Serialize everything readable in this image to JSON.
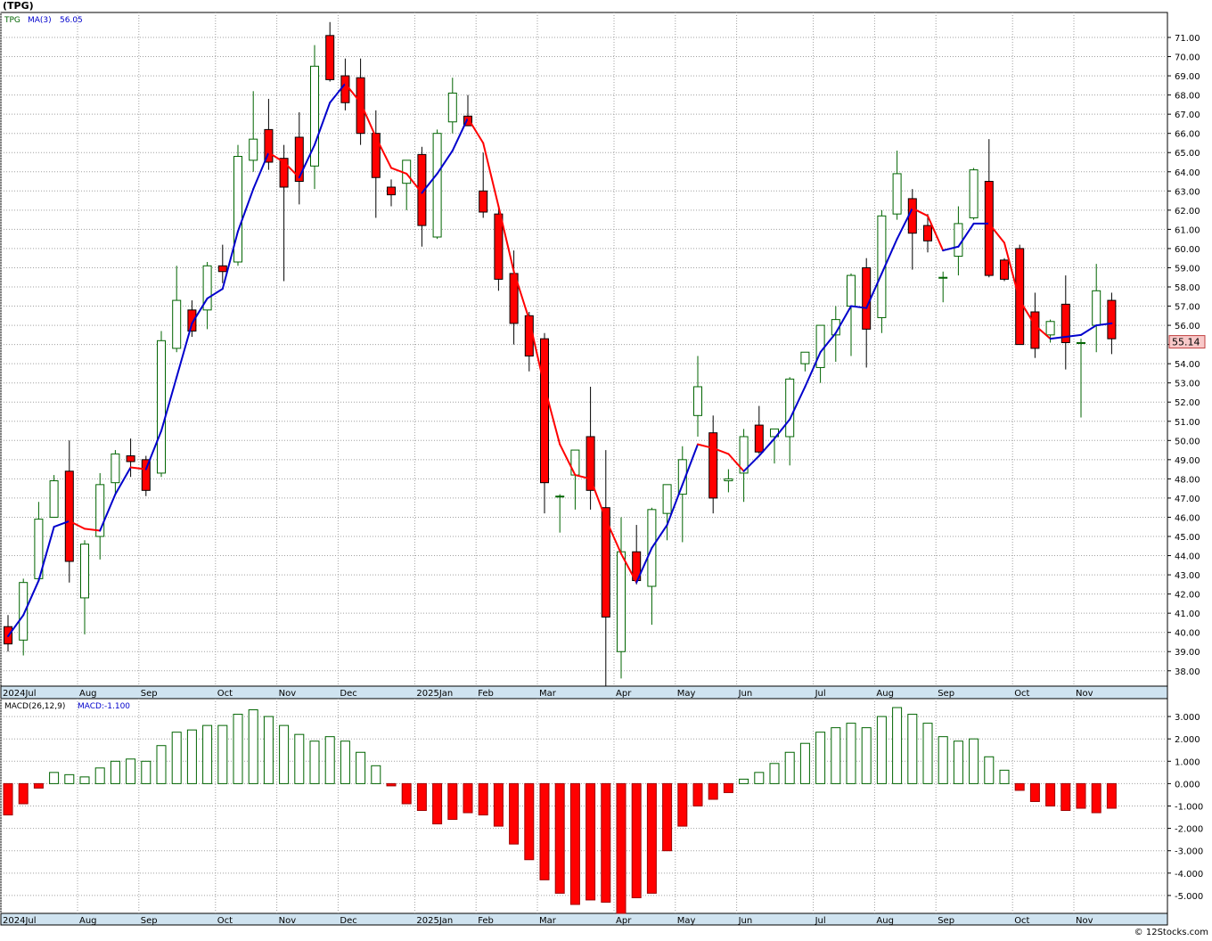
{
  "header": {
    "symbol_title": "(TPG)",
    "copyright": "© 12Stocks.com"
  },
  "colors": {
    "up_outline": "#006400",
    "down_fill": "#ff0000",
    "ma_up": "#0000cc",
    "ma_down": "#ff0000",
    "grid": "#a0a0a0",
    "axis_bg": "#cfe3f0",
    "last_bg": "#f8c8c8"
  },
  "chart_data": [
    {
      "type": "candlestick",
      "title": "",
      "legend": {
        "symbol": "TPG",
        "ma_label": "MA(3)",
        "ma_value": "56.05"
      },
      "last_price": "55.14",
      "ylim": [
        37.2,
        72.3
      ],
      "y_ticks": [
        "38.00",
        "39.00",
        "40.00",
        "41.00",
        "42.00",
        "43.00",
        "44.00",
        "45.00",
        "46.00",
        "47.00",
        "48.00",
        "49.00",
        "50.00",
        "51.00",
        "52.00",
        "53.00",
        "54.00",
        "55.00",
        "56.00",
        "57.00",
        "58.00",
        "59.00",
        "60.00",
        "61.00",
        "62.00",
        "63.00",
        "64.00",
        "65.00",
        "66.00",
        "67.00",
        "68.00",
        "69.00",
        "70.00",
        "71.00"
      ],
      "x_labels": [
        {
          "label": "2024Jul",
          "week": 0
        },
        {
          "label": "Aug",
          "week": 5
        },
        {
          "label": "Sep",
          "week": 9
        },
        {
          "label": "Oct",
          "week": 14
        },
        {
          "label": "Nov",
          "week": 18
        },
        {
          "label": "Dec",
          "week": 22
        },
        {
          "label": "2025Jan",
          "week": 27
        },
        {
          "label": "Feb",
          "week": 31
        },
        {
          "label": "Mar",
          "week": 35
        },
        {
          "label": "Apr",
          "week": 40
        },
        {
          "label": "May",
          "week": 44
        },
        {
          "label": "Jun",
          "week": 48
        },
        {
          "label": "Jul",
          "week": 53
        },
        {
          "label": "Aug",
          "week": 57
        },
        {
          "label": "Sep",
          "week": 61
        },
        {
          "label": "Oct",
          "week": 66
        },
        {
          "label": "Nov",
          "week": 70
        }
      ],
      "ohlc": [
        [
          40.3,
          40.9,
          39.0,
          39.4
        ],
        [
          39.6,
          42.8,
          38.8,
          42.6
        ],
        [
          42.8,
          46.8,
          42.7,
          45.9
        ],
        [
          46.0,
          48.2,
          46.0,
          47.9
        ],
        [
          48.4,
          50.0,
          42.6,
          43.7
        ],
        [
          41.8,
          44.8,
          39.9,
          44.6
        ],
        [
          45.0,
          48.3,
          43.8,
          47.7
        ],
        [
          47.8,
          49.5,
          47.2,
          49.3
        ],
        [
          49.2,
          50.1,
          48.1,
          48.9
        ],
        [
          49.0,
          49.2,
          47.1,
          47.4
        ],
        [
          48.3,
          55.7,
          48.1,
          55.2
        ],
        [
          54.8,
          59.1,
          54.6,
          57.3
        ],
        [
          56.8,
          57.3,
          55.4,
          55.7
        ],
        [
          56.8,
          59.3,
          55.8,
          59.1
        ],
        [
          59.1,
          60.2,
          58.2,
          58.8
        ],
        [
          59.3,
          65.4,
          59.1,
          64.8
        ],
        [
          64.6,
          68.2,
          64.0,
          65.7
        ],
        [
          66.2,
          67.8,
          64.1,
          64.5
        ],
        [
          64.7,
          65.4,
          58.3,
          63.2
        ],
        [
          65.8,
          67.1,
          62.3,
          63.5
        ],
        [
          64.3,
          70.6,
          63.1,
          69.5
        ],
        [
          71.1,
          71.8,
          68.7,
          68.8
        ],
        [
          69.0,
          69.9,
          67.2,
          67.6
        ],
        [
          68.9,
          69.9,
          65.4,
          66.0
        ],
        [
          66.0,
          67.2,
          61.6,
          63.7
        ],
        [
          63.2,
          63.6,
          62.2,
          62.8
        ],
        [
          63.4,
          64.6,
          62.0,
          64.6
        ],
        [
          64.9,
          65.3,
          60.1,
          61.2
        ],
        [
          60.6,
          66.2,
          60.5,
          66.0
        ],
        [
          66.6,
          68.9,
          66.0,
          68.1
        ],
        [
          66.9,
          68.0,
          66.6,
          66.4
        ],
        [
          63.0,
          65.0,
          61.6,
          61.9
        ],
        [
          61.8,
          62.1,
          57.8,
          58.4
        ],
        [
          58.7,
          59.9,
          55.0,
          56.1
        ],
        [
          56.5,
          56.7,
          53.6,
          54.4
        ],
        [
          55.3,
          55.6,
          46.2,
          47.8
        ],
        [
          47.1,
          47.2,
          45.2,
          47.1
        ],
        [
          48.2,
          49.5,
          46.4,
          49.5
        ],
        [
          50.2,
          52.8,
          46.4,
          47.4
        ],
        [
          46.5,
          49.5,
          37.2,
          40.8
        ],
        [
          39.0,
          46.0,
          37.6,
          44.2
        ],
        [
          44.2,
          45.6,
          42.5,
          42.7
        ],
        [
          42.4,
          46.5,
          40.4,
          46.4
        ],
        [
          46.2,
          47.6,
          44.8,
          47.7
        ],
        [
          47.2,
          49.7,
          44.7,
          49.0
        ],
        [
          51.3,
          54.4,
          50.2,
          52.8
        ],
        [
          50.4,
          51.3,
          46.2,
          47.0
        ],
        [
          47.9,
          48.5,
          47.3,
          48.0
        ],
        [
          48.3,
          50.6,
          46.8,
          50.2
        ],
        [
          50.8,
          51.8,
          49.3,
          49.4
        ],
        [
          50.2,
          50.6,
          48.8,
          50.6
        ],
        [
          50.2,
          53.3,
          48.7,
          53.2
        ],
        [
          54.0,
          54.6,
          53.6,
          54.6
        ],
        [
          53.8,
          56.0,
          53.0,
          56.0
        ],
        [
          55.5,
          57.0,
          54.1,
          56.3
        ],
        [
          57.0,
          58.7,
          54.4,
          58.6
        ],
        [
          59.0,
          59.5,
          53.8,
          55.8
        ],
        [
          56.4,
          62.0,
          55.6,
          61.7
        ],
        [
          61.8,
          65.1,
          61.5,
          63.9
        ],
        [
          62.6,
          63.1,
          58.9,
          60.8
        ],
        [
          61.2,
          61.8,
          59.8,
          60.4
        ],
        [
          58.5,
          58.8,
          57.2,
          58.5
        ],
        [
          59.6,
          62.2,
          58.6,
          61.3
        ],
        [
          61.6,
          64.2,
          61.5,
          64.1
        ],
        [
          63.5,
          65.7,
          58.5,
          58.6
        ],
        [
          59.4,
          59.5,
          58.3,
          58.4
        ],
        [
          60.0,
          60.2,
          55.1,
          55.0
        ],
        [
          56.7,
          57.7,
          54.3,
          54.8
        ],
        [
          55.5,
          56.3,
          55.1,
          56.2
        ],
        [
          57.1,
          58.6,
          53.7,
          55.1
        ],
        [
          55.1,
          55.3,
          51.2,
          55.1
        ],
        [
          56.0,
          59.2,
          54.6,
          57.8
        ],
        [
          57.3,
          57.7,
          54.5,
          55.3
        ]
      ],
      "ma3": [
        39.8,
        40.9,
        42.7,
        45.5,
        45.8,
        45.4,
        45.3,
        47.2,
        48.6,
        48.5,
        50.5,
        53.3,
        56.1,
        57.4,
        57.9,
        60.9,
        63.1,
        65.0,
        64.5,
        63.7,
        65.4,
        67.6,
        68.6,
        67.6,
        65.8,
        64.2,
        63.9,
        62.9,
        63.9,
        65.1,
        66.8,
        65.5,
        62.2,
        58.8,
        56.3,
        52.8,
        49.8,
        48.2,
        48.0,
        45.9,
        44.1,
        42.6,
        44.4,
        45.6,
        47.7,
        49.8,
        49.6,
        49.3,
        48.4,
        49.2,
        50.1,
        51.1,
        52.8,
        54.6,
        55.6,
        57.0,
        56.9,
        58.7,
        60.5,
        62.1,
        61.7,
        59.9,
        60.1,
        61.3,
        61.3,
        60.3,
        57.3,
        56.0,
        55.3,
        55.4,
        55.5,
        56.0,
        56.1
      ],
      "ma_segment_color": [
        "up",
        "up",
        "up",
        "up",
        "up",
        "down",
        "down",
        "up",
        "up",
        "down",
        "up",
        "up",
        "up",
        "up",
        "up",
        "up",
        "up",
        "up",
        "down",
        "down",
        "up",
        "up",
        "up",
        "down",
        "down",
        "down",
        "down",
        "down",
        "up",
        "up",
        "up",
        "down",
        "down",
        "down",
        "down",
        "down",
        "down",
        "down",
        "down",
        "down",
        "down",
        "down",
        "up",
        "up",
        "up",
        "up",
        "down",
        "down",
        "down",
        "up",
        "up",
        "up",
        "up",
        "up",
        "up",
        "up",
        "up",
        "up",
        "up",
        "up",
        "down",
        "down",
        "up",
        "up",
        "up",
        "down",
        "down",
        "down",
        "down",
        "up",
        "up",
        "up",
        "up"
      ]
    },
    {
      "type": "bar",
      "title": "",
      "legend": {
        "label": "MACD(26,12,9)",
        "value_label": "MACD:-1.100"
      },
      "ylim": [
        -5.8,
        3.8
      ],
      "y_ticks": [
        "3.000",
        "2.000",
        "1.000",
        "0.000",
        "-1.000",
        "-2.000",
        "-3.000",
        "-4.000",
        "-5.000"
      ],
      "values": [
        -1.4,
        -0.9,
        -0.2,
        0.5,
        0.4,
        0.3,
        0.7,
        1.0,
        1.1,
        1.0,
        1.7,
        2.3,
        2.4,
        2.6,
        2.6,
        3.1,
        3.3,
        3.0,
        2.6,
        2.2,
        1.9,
        2.1,
        1.9,
        1.4,
        0.8,
        -0.1,
        -0.9,
        -1.2,
        -1.8,
        -1.6,
        -1.3,
        -1.4,
        -1.9,
        -2.7,
        -3.4,
        -4.3,
        -4.9,
        -5.4,
        -5.2,
        -5.3,
        -5.8,
        -5.1,
        -4.9,
        -3.0,
        -1.9,
        -1.0,
        -0.7,
        -0.4,
        0.2,
        0.5,
        0.9,
        1.4,
        1.8,
        2.3,
        2.5,
        2.7,
        2.5,
        3.0,
        3.4,
        3.1,
        2.7,
        2.1,
        1.9,
        2.0,
        1.2,
        0.6,
        -0.3,
        -0.8,
        -1.0,
        -1.2,
        -1.1,
        -1.3,
        -1.1
      ]
    }
  ]
}
